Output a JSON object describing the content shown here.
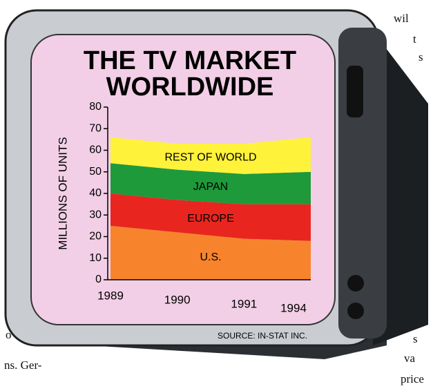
{
  "chart_data": {
    "type": "stacked_area",
    "title": [
      "THE TV MARKET",
      "WORLDWIDE"
    ],
    "y_label": "MILLIONS OF UNITS",
    "source": "SOURCE: IN-STAT INC.",
    "categories": [
      "1989",
      "1990",
      "1991",
      "1994"
    ],
    "series": [
      {
        "name": "U.S.",
        "color": "#f7842c",
        "values": [
          25,
          22,
          19,
          18
        ]
      },
      {
        "name": "EUROPE",
        "color": "#e8261f",
        "values": [
          15,
          15,
          16,
          17
        ]
      },
      {
        "name": "JAPAN",
        "color": "#1e9a3b",
        "values": [
          14,
          14,
          14,
          15
        ]
      },
      {
        "name": "REST OF WORLD",
        "color": "#fff23a",
        "values": [
          12,
          12,
          14,
          16
        ]
      }
    ],
    "ylim": [
      0,
      80
    ],
    "yticks": [
      0,
      10,
      20,
      30,
      40,
      50,
      60,
      70,
      80
    ]
  },
  "margin_text": [
    "wil",
    "t",
    "s",
    "o",
    "ns. Ger-",
    "s",
    "va",
    "price"
  ]
}
